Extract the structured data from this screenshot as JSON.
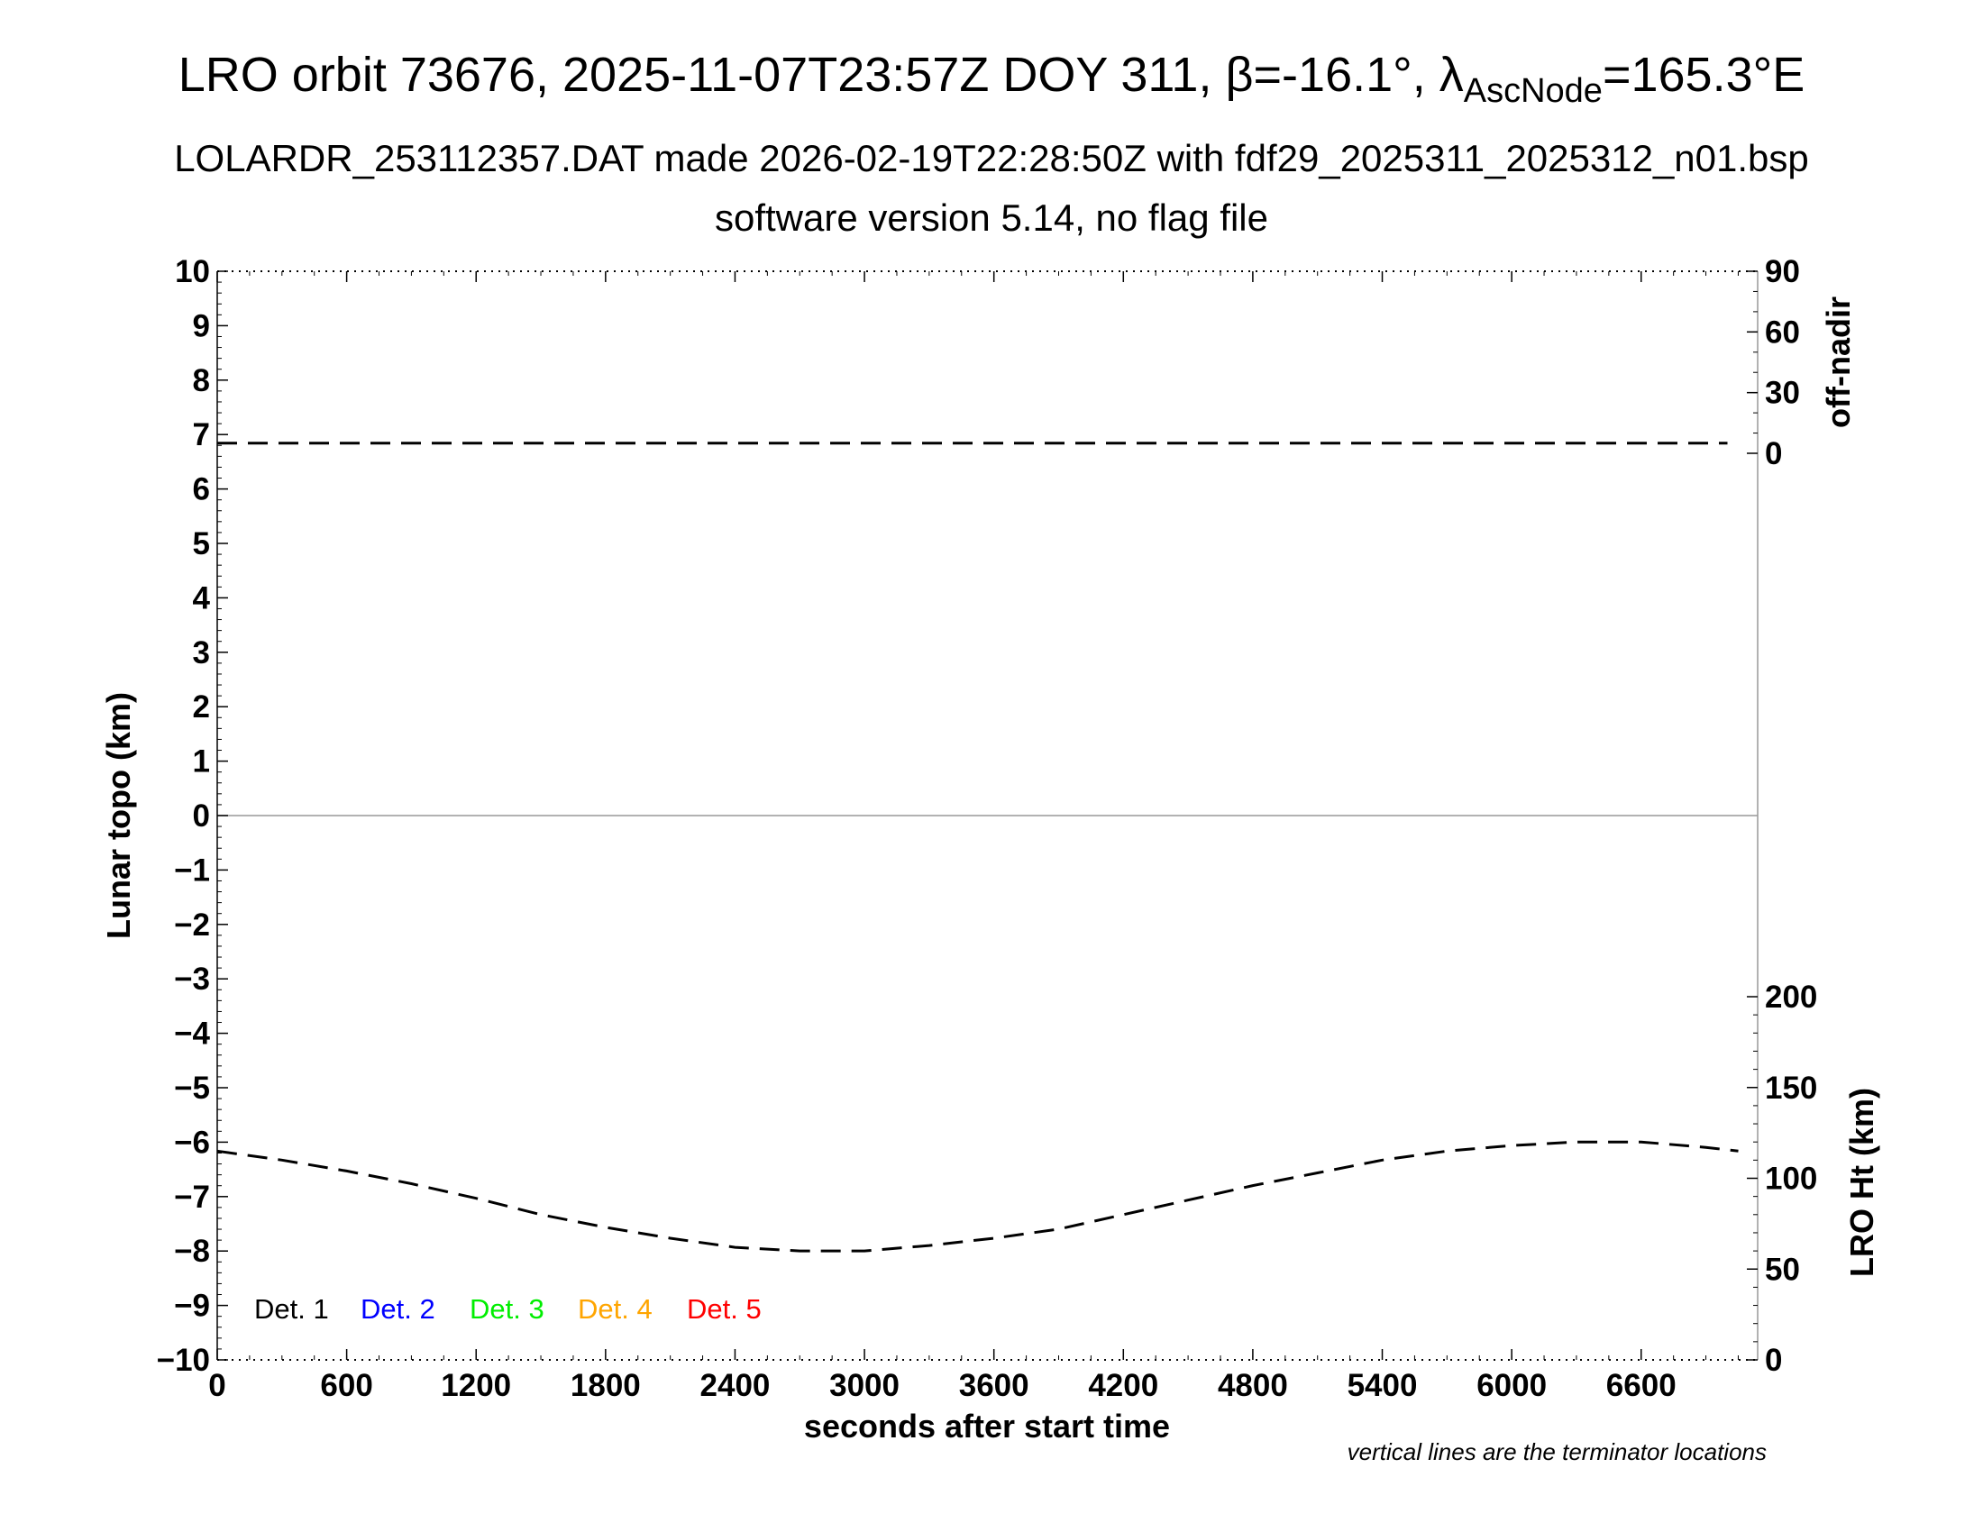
{
  "title": {
    "main": "LRO orbit 73676, 2025-11-07T23:57Z DOY 311, β=-16.1°, λ",
    "sub": "AscNode",
    "suffix": "=165.3°E"
  },
  "subtitle_1": "LOLARDR_253112357.DAT made 2026-02-19T22:28:50Z with fdf29_2025311_2025312_n01.bsp",
  "subtitle_2": "software version 5.14, no flag file",
  "chart_data": {
    "type": "line",
    "xlabel": "seconds after start time",
    "ylabel": "Lunar topo (km)",
    "y2_top_label": "off-nadir",
    "y2_bottom_label": "LRO Ht (km)",
    "xlim": [
      0,
      7140
    ],
    "ylim": [
      -10,
      10
    ],
    "x_ticks": [
      0,
      600,
      1200,
      1800,
      2400,
      3000,
      3600,
      4200,
      4800,
      5400,
      6000,
      6600
    ],
    "y_ticks": [
      10,
      9,
      8,
      7,
      6,
      5,
      4,
      3,
      2,
      1,
      0,
      -1,
      -2,
      -3,
      -4,
      -5,
      -6,
      -7,
      -8,
      -9,
      -10
    ],
    "y_tick_labels": [
      "10",
      "9",
      "8",
      "7",
      "6",
      "5",
      "4",
      "3",
      "2",
      "1",
      "0",
      "−1",
      "−2",
      "−3",
      "−4",
      "−5",
      "−6",
      "−7",
      "−8",
      "−9",
      "−10"
    ],
    "off_nadir_ticks": [
      90,
      60,
      30,
      0
    ],
    "off_nadir_tick_labels": [
      "90",
      "60",
      "30",
      "0"
    ],
    "off_nadir_range": [
      0,
      90
    ],
    "lro_ht_ticks": [
      200,
      150,
      100,
      50,
      0
    ],
    "lro_ht_tick_labels": [
      "200",
      "150",
      "100",
      "50",
      "0"
    ],
    "lro_ht_range": [
      0,
      300
    ],
    "series": [
      {
        "name": "off-nadir",
        "axis": "off-nadir",
        "style": "dashed",
        "color": "#000000",
        "x": [
          0,
          1000,
          2000,
          3000,
          4000,
          5000,
          6000,
          7000
        ],
        "y": [
          5,
          5,
          5,
          5,
          5,
          5,
          5,
          5
        ]
      },
      {
        "name": "LRO Ht (km)",
        "axis": "lro-ht",
        "style": "dashed",
        "color": "#000000",
        "x": [
          0,
          300,
          600,
          900,
          1200,
          1500,
          1800,
          2100,
          2400,
          2700,
          3000,
          3300,
          3600,
          3900,
          4200,
          4500,
          4800,
          5100,
          5400,
          5700,
          6000,
          6300,
          6600,
          6900,
          7050
        ],
        "y": [
          115,
          110,
          104,
          97,
          89,
          80,
          73,
          67,
          62,
          60,
          60,
          63,
          67,
          72,
          80,
          88,
          96,
          103,
          110,
          115,
          118,
          120,
          120,
          117,
          115
        ]
      }
    ],
    "legend": [
      {
        "label": "Det. 1",
        "color": "#000000"
      },
      {
        "label": "Det. 2",
        "color": "#0000ff"
      },
      {
        "label": "Det. 3",
        "color": "#00ee00"
      },
      {
        "label": "Det. 4",
        "color": "#ffa500"
      },
      {
        "label": "Det. 5",
        "color": "#ff0000"
      }
    ],
    "legend_position": "bottom-left",
    "note": "vertical lines are the terminator locations"
  }
}
